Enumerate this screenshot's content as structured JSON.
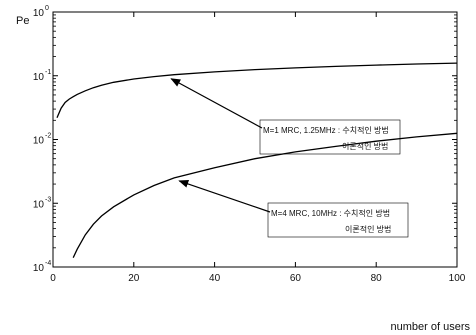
{
  "chart_data": {
    "type": "line",
    "xlabel": "number of users",
    "ylabel": "Pe",
    "xlim": [
      0,
      100
    ],
    "ylim": [
      0.0001,
      1
    ],
    "yscale": "log",
    "grid": false,
    "xticks": [
      "0",
      "20",
      "40",
      "60",
      "80",
      "100"
    ],
    "yticks": [
      {
        "base": "10",
        "exp": "0"
      },
      {
        "base": "10",
        "exp": "-1"
      },
      {
        "base": "10",
        "exp": "-2"
      },
      {
        "base": "10",
        "exp": "-3"
      },
      {
        "base": "10",
        "exp": "-4"
      }
    ],
    "series": [
      {
        "color": "#000000",
        "x": [
          1,
          2,
          3,
          4,
          5,
          6,
          8,
          10,
          12,
          15,
          20,
          25,
          30,
          40,
          50,
          60,
          70,
          80,
          90,
          100
        ],
        "y": [
          0.022,
          0.031,
          0.038,
          0.043,
          0.047,
          0.051,
          0.058,
          0.065,
          0.071,
          0.079,
          0.089,
          0.097,
          0.104,
          0.115,
          0.125,
          0.133,
          0.14,
          0.147,
          0.153,
          0.158
        ]
      },
      {
        "color": "#000000",
        "x": [
          5,
          6,
          8,
          10,
          12,
          15,
          20,
          25,
          30,
          40,
          50,
          60,
          70,
          80,
          90,
          100
        ],
        "y": [
          0.00014,
          0.00019,
          0.00032,
          0.00047,
          0.00063,
          0.00088,
          0.00135,
          0.0019,
          0.0025,
          0.0036,
          0.005,
          0.0064,
          0.0078,
          0.0094,
          0.011,
          0.0125
        ]
      }
    ],
    "annotations": [
      {
        "line1": "M=1 MRC, 1.25MHz : 수치적인 방법",
        "line2": "이론적인 방법",
        "target_x": 29,
        "target_y": 0.1
      },
      {
        "line1": "M=4 MRC, 10MHz :  수치적인 방법",
        "line2": "이론적인 방법",
        "target_x": 31,
        "target_y": 0.0025
      }
    ]
  }
}
